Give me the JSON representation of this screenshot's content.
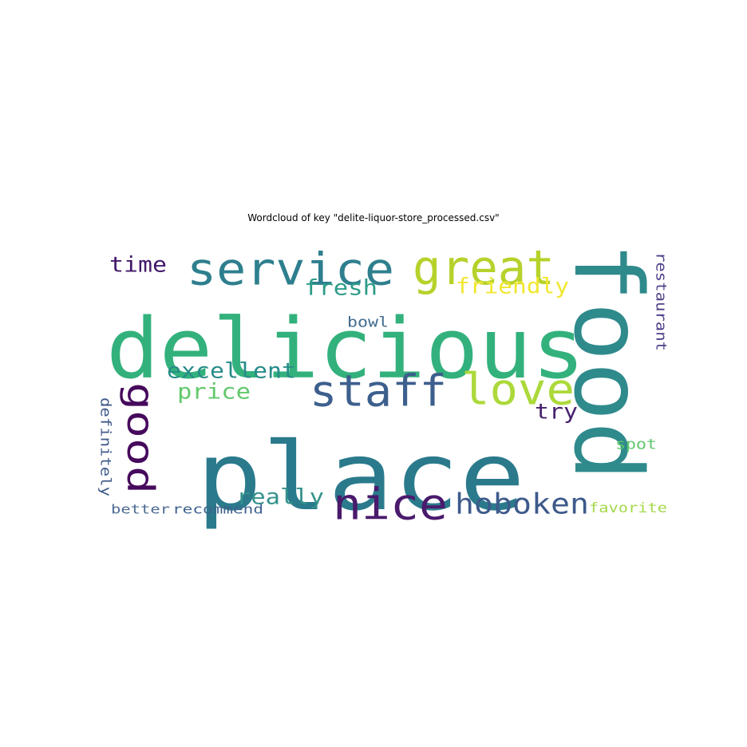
{
  "title": "Wordcloud of key \"delite-liquor-store_processed.csv\"",
  "chart_data": {
    "type": "wordcloud",
    "title": "Wordcloud of key \"delite-liquor-store_processed.csv\"",
    "colormap": "viridis",
    "words": [
      {
        "text": "place",
        "weight": 1.0,
        "color": "#2a7a8c",
        "rotated": false
      },
      {
        "text": "delicious",
        "weight": 0.9,
        "color": "#33b17c",
        "rotated": false
      },
      {
        "text": "food",
        "weight": 0.88,
        "color": "#2f8a8c",
        "rotated": true
      },
      {
        "text": "service",
        "weight": 0.5,
        "color": "#2e7f8e",
        "rotated": false
      },
      {
        "text": "great",
        "weight": 0.5,
        "color": "#b5d22b",
        "rotated": false
      },
      {
        "text": "staff",
        "weight": 0.42,
        "color": "#3d5f8d",
        "rotated": false
      },
      {
        "text": "love",
        "weight": 0.42,
        "color": "#acd93a",
        "rotated": false
      },
      {
        "text": "good",
        "weight": 0.4,
        "color": "#46095c",
        "rotated": true
      },
      {
        "text": "nice",
        "weight": 0.4,
        "color": "#4a1a6c",
        "rotated": false
      },
      {
        "text": "hoboken",
        "weight": 0.3,
        "color": "#3d5a8b",
        "rotated": false
      },
      {
        "text": "really",
        "weight": 0.22,
        "color": "#34928b",
        "rotated": false
      },
      {
        "text": "fresh",
        "weight": 0.2,
        "color": "#2d9c88",
        "rotated": false
      },
      {
        "text": "friendly",
        "weight": 0.2,
        "color": "#f1e730",
        "rotated": false
      },
      {
        "text": "excellent",
        "weight": 0.2,
        "color": "#278c88",
        "rotated": false
      },
      {
        "text": "time",
        "weight": 0.18,
        "color": "#43196a",
        "rotated": false
      },
      {
        "text": "price",
        "weight": 0.18,
        "color": "#61c86c",
        "rotated": false
      },
      {
        "text": "try",
        "weight": 0.18,
        "color": "#46216d",
        "rotated": false
      },
      {
        "text": "restaurant",
        "weight": 0.12,
        "color": "#4f3f88",
        "rotated": true
      },
      {
        "text": "definitely",
        "weight": 0.12,
        "color": "#3f5a8b",
        "rotated": true
      },
      {
        "text": "bowl",
        "weight": 0.12,
        "color": "#3f6a8e",
        "rotated": false
      },
      {
        "text": "spot",
        "weight": 0.12,
        "color": "#5ec86c",
        "rotated": false
      },
      {
        "text": "better",
        "weight": 0.11,
        "color": "#4d6b93",
        "rotated": false
      },
      {
        "text": "recommend",
        "weight": 0.11,
        "color": "#3e628e",
        "rotated": false
      },
      {
        "text": "favorite",
        "weight": 0.11,
        "color": "#a4d84a",
        "rotated": false
      }
    ]
  }
}
